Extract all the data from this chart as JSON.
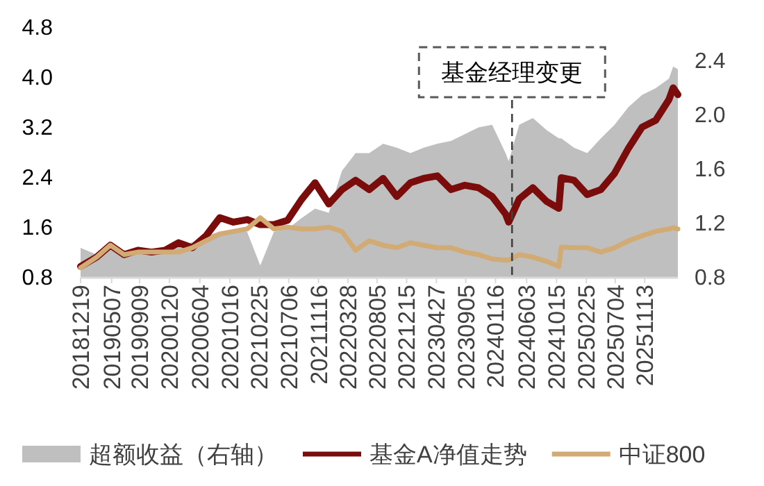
{
  "chart_data": {
    "type": "line",
    "x": [
      "2018-12-19",
      "2019-03-01",
      "2019-05-01",
      "2019-07-01",
      "2019-09-01",
      "2019-11-01",
      "2020-01-01",
      "2020-03-01",
      "2020-05-01",
      "2020-07-01",
      "2020-09-01",
      "2020-11-01",
      "2021-01-01",
      "2021-03-01",
      "2021-05-01",
      "2021-07-01",
      "2021-09-01",
      "2021-11-01",
      "2022-01-01",
      "2022-03-01",
      "2022-05-01",
      "2022-07-01",
      "2022-09-01",
      "2022-11-01",
      "2023-01-01",
      "2023-03-01",
      "2023-05-01",
      "2023-07-01",
      "2023-09-01",
      "2023-11-01",
      "2024-01-01",
      "2024-03-01",
      "2024-03-15",
      "2024-05-01",
      "2024-07-01",
      "2024-09-01",
      "2024-10-25",
      "2024-11-05",
      "2025-01-01",
      "2025-03-01",
      "2025-05-01",
      "2025-07-01",
      "2025-09-01",
      "2025-11-01",
      "2026-01-01",
      "2026-03-01",
      "2026-03-20",
      "2026-04-10"
    ],
    "series": [
      {
        "name": "超额收益（右轴）",
        "type": "area",
        "axis": "y2",
        "color": "#bfbfbf",
        "values": [
          1.02,
          0.97,
          1.04,
          0.99,
          1.01,
          1.01,
          1.01,
          1.04,
          1.06,
          1.11,
          1.14,
          1.14,
          1.14,
          0.89,
          1.14,
          1.16,
          1.24,
          1.31,
          1.28,
          1.59,
          1.72,
          1.72,
          1.79,
          1.76,
          1.72,
          1.76,
          1.79,
          1.81,
          1.86,
          1.91,
          1.93,
          1.72,
          1.66,
          1.93,
          1.98,
          1.89,
          1.83,
          1.83,
          1.76,
          1.72,
          1.83,
          1.93,
          2.06,
          2.15,
          2.2,
          2.27,
          2.36,
          2.34
        ]
      },
      {
        "name": "基金A净值走势",
        "color": "#7b0c0c",
        "values": [
          0.98,
          1.13,
          1.32,
          1.17,
          1.24,
          1.21,
          1.24,
          1.36,
          1.28,
          1.47,
          1.76,
          1.69,
          1.73,
          1.65,
          1.65,
          1.72,
          2.05,
          2.32,
          1.98,
          2.21,
          2.36,
          2.21,
          2.39,
          2.1,
          2.32,
          2.39,
          2.43,
          2.21,
          2.28,
          2.24,
          2.1,
          1.82,
          1.69,
          2.06,
          2.24,
          2.02,
          1.91,
          2.4,
          2.36,
          2.13,
          2.21,
          2.47,
          2.87,
          3.21,
          3.32,
          3.65,
          3.84,
          3.73
        ]
      },
      {
        "name": "中证800",
        "color": "#d2aa74",
        "values": [
          0.96,
          1.13,
          1.32,
          1.17,
          1.21,
          1.21,
          1.21,
          1.21,
          1.28,
          1.39,
          1.5,
          1.54,
          1.58,
          1.76,
          1.58,
          1.61,
          1.58,
          1.58,
          1.61,
          1.54,
          1.24,
          1.39,
          1.32,
          1.28,
          1.36,
          1.32,
          1.28,
          1.28,
          1.21,
          1.17,
          1.1,
          1.08,
          1.08,
          1.17,
          1.13,
          1.06,
          0.98,
          1.29,
          1.28,
          1.28,
          1.21,
          1.28,
          1.39,
          1.47,
          1.54,
          1.58,
          1.6,
          1.58
        ]
      }
    ],
    "xlim": [
      "2018-12-19",
      "2026-04-10"
    ],
    "xticks": [
      {
        "value": "2018-12-19",
        "label": "20181219"
      },
      {
        "value": "2019-05-07",
        "label": "20190507"
      },
      {
        "value": "2019-09-09",
        "label": "20190909"
      },
      {
        "value": "2020-01-20",
        "label": "20200120"
      },
      {
        "value": "2020-06-04",
        "label": "20200604"
      },
      {
        "value": "2020-10-16",
        "label": "20201016"
      },
      {
        "value": "2021-02-25",
        "label": "20210225"
      },
      {
        "value": "2021-07-06",
        "label": "20210706"
      },
      {
        "value": "2021-11-16",
        "label": "20211116"
      },
      {
        "value": "2022-03-28",
        "label": "20220328"
      },
      {
        "value": "2022-08-05",
        "label": "20220805"
      },
      {
        "value": "2022-12-15",
        "label": "20221215"
      },
      {
        "value": "2023-04-27",
        "label": "20230427"
      },
      {
        "value": "2023-09-05",
        "label": "20230905"
      },
      {
        "value": "2024-01-16",
        "label": "20240116"
      },
      {
        "value": "2024-06-03",
        "label": "20240603"
      },
      {
        "value": "2024-10-15",
        "label": "20241015"
      },
      {
        "value": "2025-02-25",
        "label": "20250225"
      },
      {
        "value": "2025-07-04",
        "label": "20250704"
      },
      {
        "value": "2025-11-13",
        "label": "20251113"
      }
    ],
    "ylim": [
      0.8,
      4.8
    ],
    "yticks": [
      0.8,
      1.6,
      2.4,
      3.2,
      {
        "value": 4,
        "label": "4.0"
      },
      4.8
    ],
    "y2lim": [
      0.8,
      2.4
    ],
    "y2ticks": [
      0.8,
      1.2,
      1.6,
      {
        "value": 2,
        "label": "2.0"
      },
      2.4
    ],
    "ref_lines": [
      {
        "axis": "x",
        "value": "2024-03-30",
        "label": "基金经理变更",
        "line_style": "dashed"
      }
    ],
    "legend": "bottom"
  }
}
